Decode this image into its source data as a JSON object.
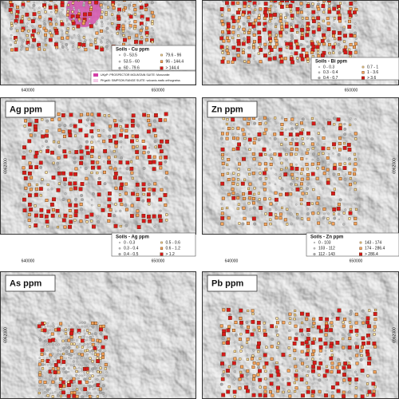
{
  "panels": [
    {
      "legend": {
        "title": "Soils - Cu ppm",
        "classes": [
          "0 - 53.5",
          "53.5 - 60",
          "60 - 79.6",
          "79.6 - 96",
          "96 - 144.4",
          "> 144.4"
        ]
      },
      "x_labels": [
        "640000",
        "650000"
      ]
    },
    {
      "legend": {
        "title": "Soils - Bi ppm",
        "classes": [
          "0 - 0.3",
          "0.3 - 0.4",
          "0.4 - 0.7",
          "0.7 - 1",
          "1 - 3.6",
          "> 3.6"
        ]
      },
      "x_labels": [
        "650000"
      ]
    },
    {
      "title": "Ag ppm",
      "legend": {
        "title": "Soils - Ag ppm",
        "classes": [
          "0 - 0.3",
          "0.3 - 0.4",
          "0.4 - 0.5",
          "0.5 - 0.6",
          "0.6 - 1.2",
          "> 1.2"
        ]
      },
      "x_labels": [
        "640000",
        "650000"
      ],
      "y_label": "6962000"
    },
    {
      "title": "Zn ppm",
      "legend": {
        "title": "Soils - Zn ppm",
        "classes": [
          "0 - 103",
          "103 - 112",
          "112 - 143",
          "143 - 174",
          "174 - 286.4",
          "> 286.4"
        ]
      },
      "x_labels": [
        "640000",
        "650000"
      ],
      "y_label": "6962000"
    },
    {
      "title": "As ppm",
      "y_label": "6962000"
    },
    {
      "title": "Pb ppm",
      "y_label": "6962000"
    }
  ],
  "geology_legend": [
    "UKpP: PROSPECTOR MOUNTAIN SUITE: Monzonite",
    "PKgsM: SIMPSON RANGE SUITE: volcanic-mafic orthogneiss"
  ]
}
